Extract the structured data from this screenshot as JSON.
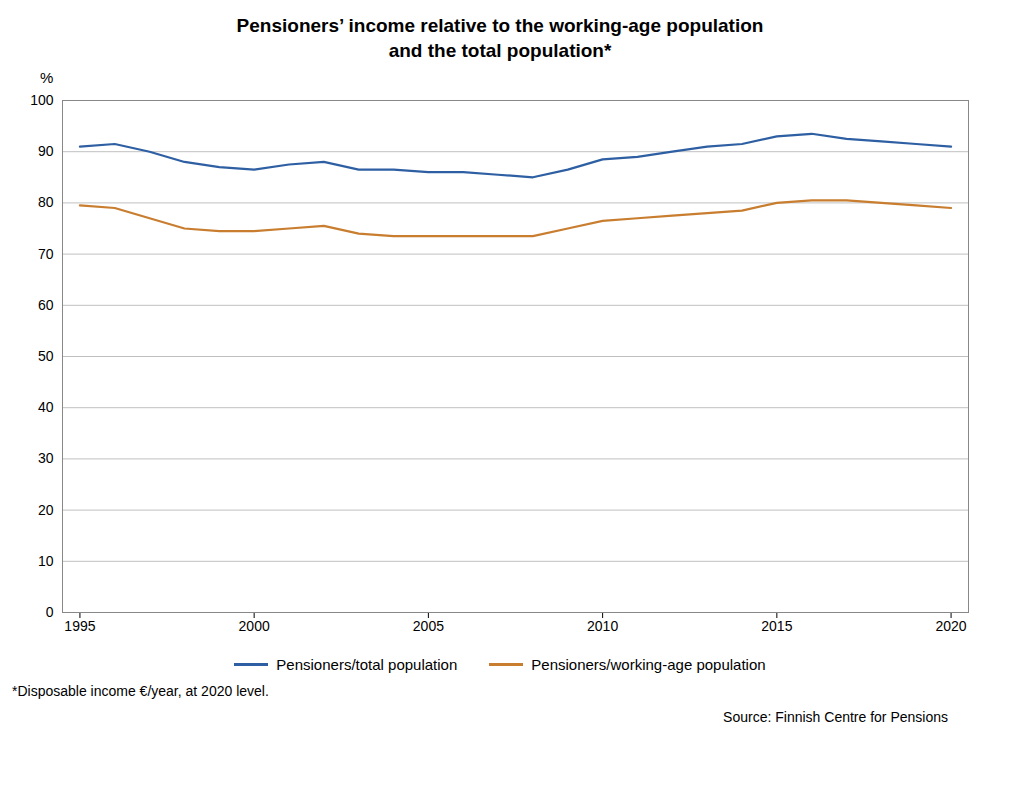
{
  "chart_data": {
    "type": "line",
    "title": "Pensioners’ income relative to the working-age population\nand the total population*",
    "y_label": "%",
    "x": [
      1995,
      1996,
      1997,
      1998,
      1999,
      2000,
      2001,
      2002,
      2003,
      2004,
      2005,
      2006,
      2007,
      2008,
      2009,
      2010,
      2011,
      2012,
      2013,
      2014,
      2015,
      2016,
      2017,
      2018,
      2019,
      2020
    ],
    "series": [
      {
        "name": "Pensioners/total population",
        "color": "#2e5fa3",
        "values": [
          91,
          91.5,
          90,
          88,
          87,
          86.5,
          87.5,
          88,
          86.5,
          86.5,
          86,
          86,
          85.5,
          85,
          86.5,
          88.5,
          89,
          90,
          91,
          91.5,
          93,
          93.5,
          92.5,
          92,
          91.5,
          91
        ]
      },
      {
        "name": "Pensioners/working-age population",
        "color": "#c87d2f",
        "values": [
          79.5,
          79,
          77,
          75,
          74.5,
          74.5,
          75,
          75.5,
          74,
          73.5,
          73.5,
          73.5,
          73.5,
          73.5,
          75,
          76.5,
          77,
          77.5,
          78,
          78.5,
          80,
          80.5,
          80.5,
          80,
          79.5,
          79
        ]
      }
    ],
    "xlim": [
      1994.5,
      2020.5
    ],
    "xticks": [
      1995,
      2000,
      2005,
      2010,
      2015,
      2020
    ],
    "ylim": [
      0,
      100
    ],
    "yticks": [
      0,
      10,
      20,
      30,
      40,
      50,
      60,
      70,
      80,
      90,
      100
    ],
    "grid": true,
    "legend": "bottom",
    "annotations": [
      "*Disposable income €/year, at 2020 level.",
      "Source: Finnish Centre for Pensions"
    ]
  }
}
